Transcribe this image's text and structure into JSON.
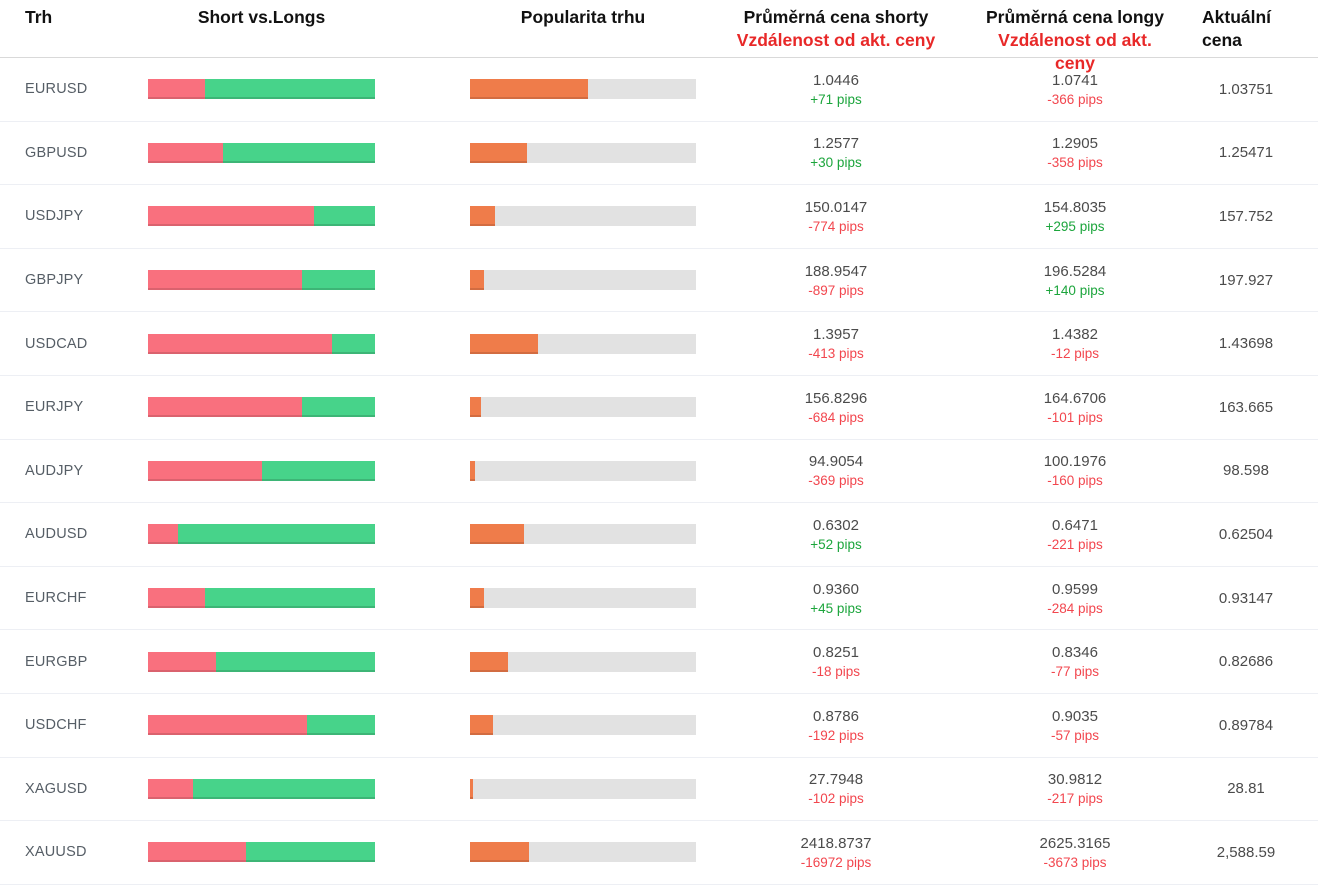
{
  "header": {
    "market": "Trh",
    "short_vs_long": "Short vs.Longs",
    "popularity": "Popularita trhu",
    "short_price_line1": "Průměrná cena shorty",
    "short_price_line2": "Vzdálenost od akt. ceny",
    "long_price_line1": "Průměrná cena longy",
    "long_price_line2": "Vzdálenost od akt. ceny",
    "current_line1": "Aktuální",
    "current_line2": "cena"
  },
  "colors": {
    "bar_red": "#f9707e",
    "bar_green": "#47d38a",
    "bar_orange": "#ef7c4a",
    "bar_track": "#e2e2e2",
    "pips_green": "#1ca53c",
    "pips_red": "#f2464e",
    "header_red": "#e82828"
  },
  "rows": [
    {
      "market": "EURUSD",
      "short_pct": 25,
      "long_pct": 75,
      "popularity_pct": 52,
      "short_price": "1.0446",
      "short_pips": "+71 pips",
      "long_price": "1.0741",
      "long_pips": "-366 pips",
      "current_price": "1.03751"
    },
    {
      "market": "GBPUSD",
      "short_pct": 33,
      "long_pct": 67,
      "popularity_pct": 25,
      "short_price": "1.2577",
      "short_pips": "+30 pips",
      "long_price": "1.2905",
      "long_pips": "-358 pips",
      "current_price": "1.25471"
    },
    {
      "market": "USDJPY",
      "short_pct": 73,
      "long_pct": 27,
      "popularity_pct": 11,
      "short_price": "150.0147",
      "short_pips": "-774 pips",
      "long_price": "154.8035",
      "long_pips": "+295 pips",
      "current_price": "157.752"
    },
    {
      "market": "GBPJPY",
      "short_pct": 68,
      "long_pct": 32,
      "popularity_pct": 6,
      "short_price": "188.9547",
      "short_pips": "-897 pips",
      "long_price": "196.5284",
      "long_pips": "+140 pips",
      "current_price": "197.927"
    },
    {
      "market": "USDCAD",
      "short_pct": 81,
      "long_pct": 19,
      "popularity_pct": 30,
      "short_price": "1.3957",
      "short_pips": "-413 pips",
      "long_price": "1.4382",
      "long_pips": "-12 pips",
      "current_price": "1.43698"
    },
    {
      "market": "EURJPY",
      "short_pct": 68,
      "long_pct": 32,
      "popularity_pct": 5,
      "short_price": "156.8296",
      "short_pips": "-684 pips",
      "long_price": "164.6706",
      "long_pips": "-101 pips",
      "current_price": "163.665"
    },
    {
      "market": "AUDJPY",
      "short_pct": 50,
      "long_pct": 50,
      "popularity_pct": 2,
      "short_price": "94.9054",
      "short_pips": "-369 pips",
      "long_price": "100.1976",
      "long_pips": "-160 pips",
      "current_price": "98.598"
    },
    {
      "market": "AUDUSD",
      "short_pct": 13,
      "long_pct": 87,
      "popularity_pct": 24,
      "short_price": "0.6302",
      "short_pips": "+52 pips",
      "long_price": "0.6471",
      "long_pips": "-221 pips",
      "current_price": "0.62504"
    },
    {
      "market": "EURCHF",
      "short_pct": 25,
      "long_pct": 75,
      "popularity_pct": 6,
      "short_price": "0.9360",
      "short_pips": "+45 pips",
      "long_price": "0.9599",
      "long_pips": "-284 pips",
      "current_price": "0.93147"
    },
    {
      "market": "EURGBP",
      "short_pct": 30,
      "long_pct": 70,
      "popularity_pct": 17,
      "short_price": "0.8251",
      "short_pips": "-18 pips",
      "long_price": "0.8346",
      "long_pips": "-77 pips",
      "current_price": "0.82686"
    },
    {
      "market": "USDCHF",
      "short_pct": 70,
      "long_pct": 30,
      "popularity_pct": 10,
      "short_price": "0.8786",
      "short_pips": "-192 pips",
      "long_price": "0.9035",
      "long_pips": "-57 pips",
      "current_price": "0.89784"
    },
    {
      "market": "XAGUSD",
      "short_pct": 20,
      "long_pct": 80,
      "popularity_pct": 1.5,
      "short_price": "27.7948",
      "short_pips": "-102 pips",
      "long_price": "30.9812",
      "long_pips": "-217 pips",
      "current_price": "28.81"
    },
    {
      "market": "XAUUSD",
      "short_pct": 43,
      "long_pct": 57,
      "popularity_pct": 26,
      "short_price": "2418.8737",
      "short_pips": "-16972 pips",
      "long_price": "2625.3165",
      "long_pips": "-3673 pips",
      "current_price": "2,588.59"
    }
  ]
}
